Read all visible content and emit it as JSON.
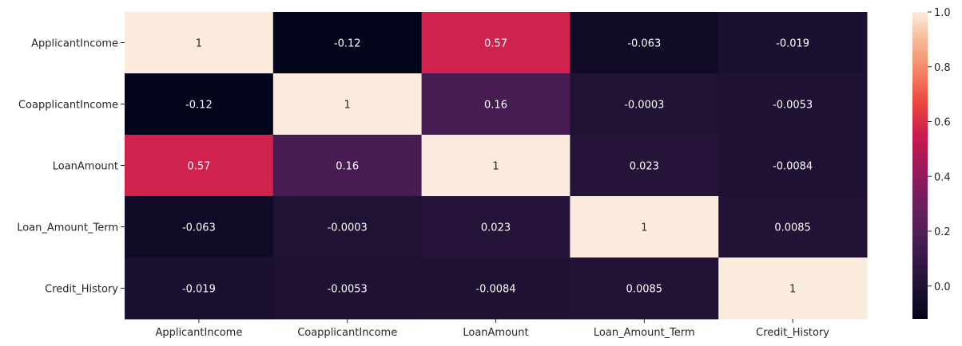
{
  "chart_data": {
    "type": "heatmap",
    "title": "",
    "xlabel": "",
    "ylabel": "",
    "columns": [
      "ApplicantIncome",
      "CoapplicantIncome",
      "LoanAmount",
      "Loan_Amount_Term",
      "Credit_History"
    ],
    "rows": [
      "ApplicantIncome",
      "CoapplicantIncome",
      "LoanAmount",
      "Loan_Amount_Term",
      "Credit_History"
    ],
    "values": [
      [
        1,
        -0.12,
        0.57,
        -0.063,
        -0.019
      ],
      [
        -0.12,
        1,
        0.16,
        -0.0003,
        -0.0053
      ],
      [
        0.57,
        0.16,
        1,
        0.023,
        -0.0084
      ],
      [
        -0.063,
        -0.0003,
        0.023,
        1,
        0.0085
      ],
      [
        -0.019,
        -0.0053,
        -0.0084,
        0.0085,
        1
      ]
    ],
    "annotations": [
      [
        "1",
        "-0.12",
        "0.57",
        "-0.063",
        "-0.019"
      ],
      [
        "-0.12",
        "1",
        "0.16",
        "-0.0003",
        "-0.0053"
      ],
      [
        "0.57",
        "0.16",
        "1",
        "0.023",
        "-0.0084"
      ],
      [
        "-0.063",
        "-0.0003",
        "0.023",
        "1",
        "0.0085"
      ],
      [
        "-0.019",
        "-0.0053",
        "-0.0084",
        "0.0085",
        "1"
      ]
    ],
    "colormap": "rocket",
    "vmin": -0.12,
    "vmax": 1,
    "colorbar": {
      "ticks": [
        0.0,
        0.2,
        0.4,
        0.6,
        0.8,
        1.0
      ],
      "tick_labels": [
        "0.0",
        "0.2",
        "0.4",
        "0.6",
        "0.8",
        "1.0"
      ]
    }
  }
}
